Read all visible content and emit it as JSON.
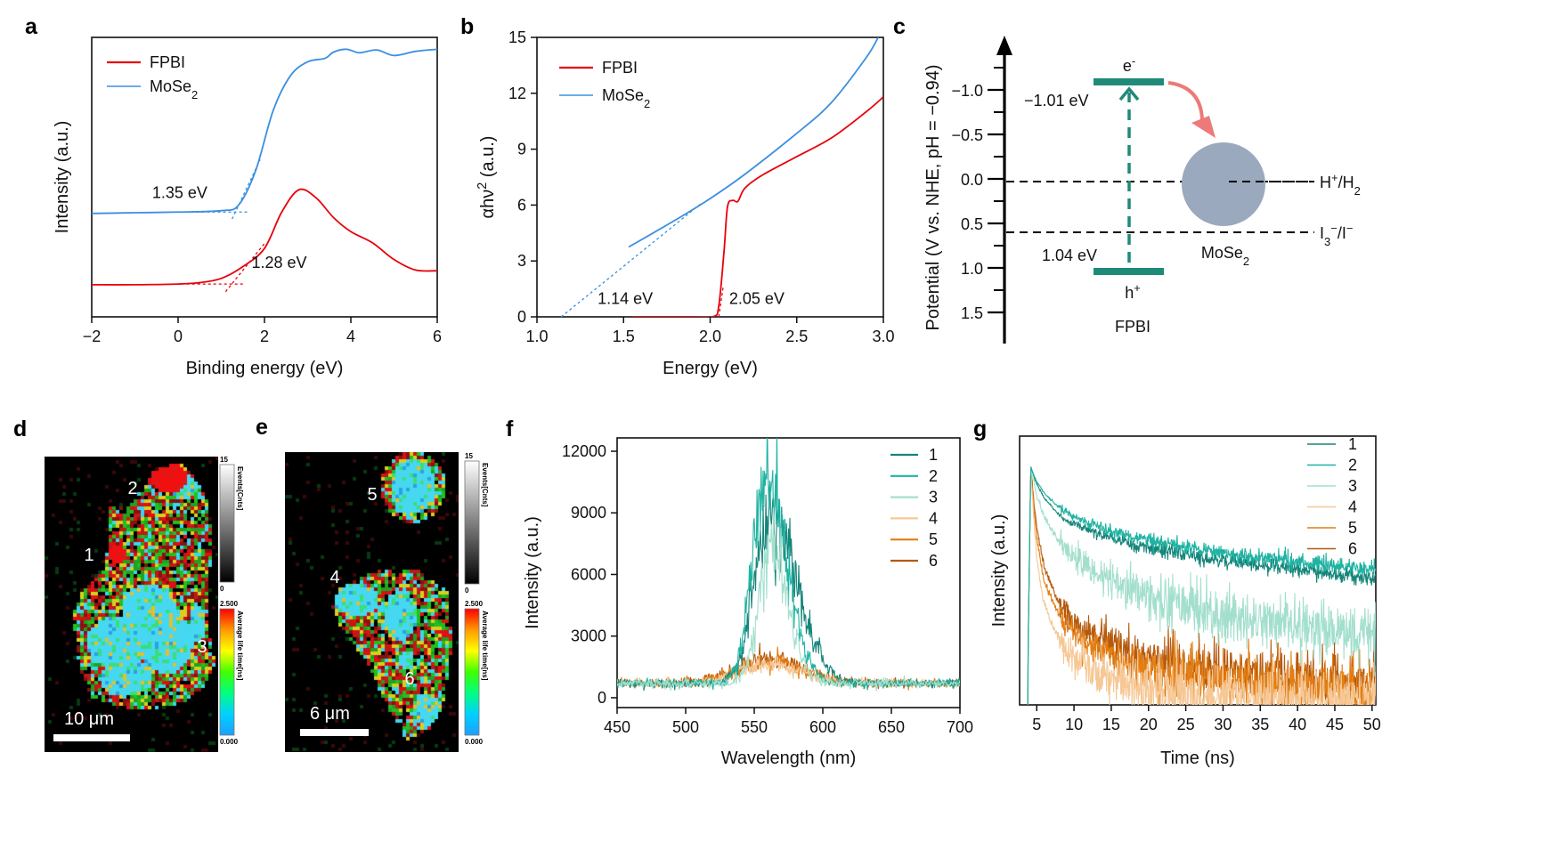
{
  "panel_labels": {
    "a": "a",
    "b": "b",
    "c": "c",
    "d": "d",
    "e": "e",
    "f": "f",
    "g": "g"
  },
  "chart_data": [
    {
      "panel": "a",
      "type": "line",
      "xlabel": "Binding energy (eV)",
      "ylabel": "Intensity (a.u.)",
      "xlim": [
        -2,
        6
      ],
      "ylim": [
        0,
        4
      ],
      "xticks": [
        {
          "v": -2,
          "label": "−2"
        },
        {
          "v": 0,
          "label": "0"
        },
        {
          "v": 2,
          "label": "2"
        },
        {
          "v": 4,
          "label": "4"
        },
        {
          "v": 6,
          "label": "6"
        }
      ],
      "yticks": [],
      "legend": "top-left",
      "series": [
        {
          "name": [
            {
              "t": "FPBI"
            }
          ],
          "color": "#e8000b",
          "points": [
            [
              -2,
              0.46
            ],
            [
              -1,
              0.46
            ],
            [
              0,
              0.47
            ],
            [
              0.5,
              0.49
            ],
            [
              1,
              0.55
            ],
            [
              1.5,
              0.72
            ],
            [
              2,
              0.98
            ],
            [
              2.4,
              1.5
            ],
            [
              2.8,
              1.82
            ],
            [
              3.2,
              1.7
            ],
            [
              3.6,
              1.42
            ],
            [
              4,
              1.22
            ],
            [
              4.5,
              1.06
            ],
            [
              5,
              0.82
            ],
            [
              5.5,
              0.67
            ],
            [
              6,
              0.66
            ]
          ]
        },
        {
          "name": [
            {
              "t": "MoSe"
            },
            {
              "t": "2",
              "s": "sub"
            }
          ],
          "color": "#3b8fe0",
          "points": [
            [
              -2,
              1.48
            ],
            [
              -1,
              1.49
            ],
            [
              0,
              1.5
            ],
            [
              1,
              1.52
            ],
            [
              1.4,
              1.6
            ],
            [
              1.8,
              2.1
            ],
            [
              2.2,
              2.95
            ],
            [
              2.6,
              3.45
            ],
            [
              3,
              3.65
            ],
            [
              3.4,
              3.7
            ],
            [
              3.6,
              3.79
            ],
            [
              3.9,
              3.83
            ],
            [
              4.2,
              3.78
            ],
            [
              4.6,
              3.82
            ],
            [
              5,
              3.74
            ],
            [
              5.5,
              3.8
            ],
            [
              6,
              3.83
            ]
          ]
        }
      ],
      "tangents": [
        {
          "color": "#3b8fe0",
          "from": [
            1.25,
            1.4
          ],
          "to": [
            1.9,
            2.25
          ]
        },
        {
          "color": "#3b8fe0",
          "from": [
            0.3,
            1.5
          ],
          "to": [
            1.6,
            1.5
          ]
        },
        {
          "color": "#e8000b",
          "from": [
            1.1,
            0.36
          ],
          "to": [
            2.0,
            1.05
          ]
        },
        {
          "color": "#e8000b",
          "from": [
            0.2,
            0.47
          ],
          "to": [
            1.5,
            0.47
          ]
        }
      ],
      "annotations": [
        {
          "text": "1.35 eV",
          "color": "#3b8fe0",
          "at": [
            -0.6,
            1.7
          ]
        },
        {
          "text": "1.28 eV",
          "color": "#e8000b",
          "at": [
            1.7,
            0.7
          ]
        }
      ]
    },
    {
      "panel": "b",
      "type": "line",
      "xlabel": "Energy (eV)",
      "ylabel": [
        {
          "t": "αhν"
        },
        {
          "t": "2",
          "s": "sup"
        },
        {
          "t": " (a.u.)"
        }
      ],
      "xlim": [
        1.0,
        3.0
      ],
      "ylim": [
        0,
        15
      ],
      "xticks": [
        {
          "v": 1,
          "label": "1.0"
        },
        {
          "v": 1.5,
          "label": "1.5"
        },
        {
          "v": 2,
          "label": "2.0"
        },
        {
          "v": 2.5,
          "label": "2.5"
        },
        {
          "v": 3,
          "label": "3.0"
        }
      ],
      "yticks": [
        {
          "v": 0,
          "label": "0"
        },
        {
          "v": 3,
          "label": "3"
        },
        {
          "v": 6,
          "label": "6"
        },
        {
          "v": 9,
          "label": "9"
        },
        {
          "v": 12,
          "label": "12"
        },
        {
          "v": 15,
          "label": "15"
        }
      ],
      "legend": "top-left",
      "series": [
        {
          "name": [
            {
              "t": "FPBI"
            }
          ],
          "color": "#e8000b",
          "points": [
            [
              1.55,
              0
            ],
            [
              1.9,
              0
            ],
            [
              2.02,
              0.02
            ],
            [
              2.05,
              0.6
            ],
            [
              2.08,
              3.5
            ],
            [
              2.1,
              5.9
            ],
            [
              2.13,
              6.25
            ],
            [
              2.16,
              6.2
            ],
            [
              2.2,
              6.9
            ],
            [
              2.3,
              7.6
            ],
            [
              2.5,
              8.6
            ],
            [
              2.7,
              9.6
            ],
            [
              2.9,
              11.0
            ],
            [
              3.0,
              11.8
            ]
          ]
        },
        {
          "name": [
            {
              "t": "MoSe"
            },
            {
              "t": "2",
              "s": "sub"
            }
          ],
          "color": "#3b8fe0",
          "points": [
            [
              1.53,
              3.75
            ],
            [
              1.8,
              5.2
            ],
            [
              2.0,
              6.35
            ],
            [
              2.2,
              7.65
            ],
            [
              2.5,
              9.85
            ],
            [
              2.7,
              11.5
            ],
            [
              2.9,
              13.9
            ],
            [
              2.97,
              15
            ]
          ]
        }
      ],
      "tangents": [
        {
          "color": "#3b8fe0",
          "from": [
            1.14,
            0
          ],
          "to": [
            1.95,
            6.1
          ]
        },
        {
          "color": "#e8000b",
          "from": [
            2.05,
            0
          ],
          "to": [
            2.075,
            1.6
          ]
        }
      ],
      "annotations": [
        {
          "text": "1.14 eV",
          "color": "#3b8fe0",
          "at": [
            1.35,
            0.7
          ]
        },
        {
          "text": "2.05 eV",
          "color": "#e8000b",
          "at": [
            2.11,
            0.7
          ]
        }
      ]
    },
    {
      "panel": "c",
      "type": "diagram",
      "ylabel": "Potential  (V vs. NHE, pH = −0.94)",
      "yticks": [
        {
          "v": -1.0,
          "label": "−1.0"
        },
        {
          "v": -0.5,
          "label": "−0.5"
        },
        {
          "v": 0,
          "label": "0.0"
        },
        {
          "v": 0.5,
          "label": "0.5"
        },
        {
          "v": 1.0,
          "label": "1.0"
        },
        {
          "v": 1.5,
          "label": "1.5"
        }
      ],
      "semiconductor": {
        "name": "FPBI",
        "color": "#1f8a78",
        "cb_potential": -1.01,
        "vb_potential": 1.04,
        "cb_label": "−1.01 eV",
        "vb_label": "1.04 eV",
        "electron": [
          {
            "t": "e"
          },
          {
            "t": "-",
            "s": "sup"
          }
        ],
        "hole": [
          {
            "t": "h"
          },
          {
            "t": "+",
            "s": "sup"
          }
        ]
      },
      "cocatalyst": {
        "name": [
          {
            "t": "MoSe"
          },
          {
            "t": "2",
            "s": "sub"
          }
        ],
        "color": "#9aa9bd",
        "label_color": "#2e3d5c"
      },
      "redox": [
        {
          "potential": 0.0,
          "label": [
            {
              "t": "H"
            },
            {
              "t": "+",
              "s": "sup"
            },
            {
              "t": "/H"
            },
            {
              "t": "2",
              "s": "sub"
            }
          ]
        },
        {
          "potential": 0.57,
          "label": [
            {
              "t": "I"
            },
            {
              "t": "3",
              "s": "sub"
            },
            {
              "t": "−",
              "s": "sup"
            },
            {
              "t": "/I"
            },
            {
              "t": "−",
              "s": "sup"
            }
          ]
        }
      ],
      "transfer_arrow_color": "#ec7a78"
    },
    {
      "panel": "f",
      "type": "line",
      "xlabel": "Wavelength (nm)",
      "ylabel": "Intensity (a.u.)",
      "xlim": [
        450,
        700
      ],
      "ylim": [
        -480,
        12650
      ],
      "xticks": [
        {
          "v": 450,
          "label": "450"
        },
        {
          "v": 500,
          "label": "500"
        },
        {
          "v": 550,
          "label": "550"
        },
        {
          "v": 600,
          "label": "600"
        },
        {
          "v": 650,
          "label": "650"
        },
        {
          "v": 700,
          "label": "700"
        }
      ],
      "yticks": [
        {
          "v": 0,
          "label": "0"
        },
        {
          "v": 3000,
          "label": "3000"
        },
        {
          "v": 6000,
          "label": "6000"
        },
        {
          "v": 9000,
          "label": "9000"
        },
        {
          "v": 12000,
          "label": "12000"
        }
      ],
      "legend": "top-right",
      "baseline": 700,
      "series": [
        {
          "name": "1",
          "color": "#16857a",
          "peak_nm": 562,
          "peak_intensity": 8200,
          "width_left": 12,
          "width_right": 19
        },
        {
          "name": "2",
          "color": "#1fb3a2",
          "peak_nm": 559,
          "peak_intensity": 10200,
          "width_left": 10,
          "width_right": 15
        },
        {
          "name": "3",
          "color": "#a3dfcd",
          "peak_nm": 562,
          "peak_intensity": 6600,
          "width_left": 9,
          "width_right": 13
        },
        {
          "name": "4",
          "color": "#f6c896",
          "peak_nm": 560,
          "peak_intensity": 900,
          "width_left": 22,
          "width_right": 24
        },
        {
          "name": "5",
          "color": "#e37e12",
          "peak_nm": 560,
          "peak_intensity": 1100,
          "width_left": 22,
          "width_right": 24
        },
        {
          "name": "6",
          "color": "#b5590d",
          "peak_nm": 560,
          "peak_intensity": 1250,
          "width_left": 22,
          "width_right": 24
        }
      ]
    },
    {
      "panel": "g",
      "type": "line",
      "xlabel": "Time (ns)",
      "ylabel": "Intensity (a.u.)",
      "xlim": [
        2.7,
        50.5
      ],
      "ylim": [
        0,
        1.13
      ],
      "xticks": [
        {
          "v": 5,
          "label": "5"
        },
        {
          "v": 10,
          "label": "10"
        },
        {
          "v": 15,
          "label": "15"
        },
        {
          "v": 20,
          "label": "20"
        },
        {
          "v": 25,
          "label": "25"
        },
        {
          "v": 30,
          "label": "30"
        },
        {
          "v": 35,
          "label": "35"
        },
        {
          "v": 40,
          "label": "40"
        },
        {
          "v": 45,
          "label": "45"
        },
        {
          "v": 50,
          "label": "50"
        }
      ],
      "yticks": [],
      "legend": "top-right",
      "t": [
        4.2,
        5,
        6,
        8,
        10,
        15,
        20,
        30,
        40,
        50
      ],
      "series": [
        {
          "name": "1",
          "color": "#16857a",
          "noise": 0.012,
          "values": [
            1,
            0.93,
            0.87,
            0.8,
            0.76,
            0.7,
            0.66,
            0.61,
            0.57,
            0.53
          ]
        },
        {
          "name": "2",
          "color": "#1fb3a2",
          "noise": 0.012,
          "values": [
            1,
            0.94,
            0.89,
            0.83,
            0.79,
            0.73,
            0.69,
            0.64,
            0.6,
            0.57
          ]
        },
        {
          "name": "3",
          "color": "#a3dfcd",
          "noise": 0.04,
          "values": [
            1,
            0.88,
            0.79,
            0.69,
            0.62,
            0.52,
            0.45,
            0.38,
            0.33,
            0.29
          ]
        },
        {
          "name": "4",
          "color": "#f6c896",
          "noise": 0.05,
          "values": [
            1,
            0.62,
            0.42,
            0.28,
            0.2,
            0.11,
            0.06,
            0.03,
            0.02,
            0.01
          ]
        },
        {
          "name": "5",
          "color": "#e37e12",
          "noise": 0.04,
          "values": [
            1,
            0.7,
            0.52,
            0.38,
            0.3,
            0.2,
            0.15,
            0.1,
            0.08,
            0.06
          ]
        },
        {
          "name": "6",
          "color": "#b5590d",
          "noise": 0.04,
          "values": [
            1,
            0.75,
            0.58,
            0.43,
            0.35,
            0.25,
            0.19,
            0.14,
            0.11,
            0.09
          ]
        }
      ]
    }
  ],
  "images": [
    {
      "panel": "d",
      "spot_labels": [
        "1",
        "2",
        "3"
      ],
      "scale_bar": "10 μm",
      "colorbar_counts": {
        "max": "15",
        "min": "0",
        "title": "Events[Cnts]"
      },
      "colorbar_lifetime": {
        "max": "2.500",
        "min": "0.000",
        "title": "Average life time[ns]"
      }
    },
    {
      "panel": "e",
      "spot_labels": [
        "4",
        "5",
        "6"
      ],
      "scale_bar": "6 μm",
      "colorbar_counts": {
        "max": "15",
        "min": "0",
        "title": "Events[Cnts]"
      },
      "colorbar_lifetime": {
        "max": "2.500",
        "min": "0.000",
        "title": "Average life time[ns]"
      }
    }
  ]
}
